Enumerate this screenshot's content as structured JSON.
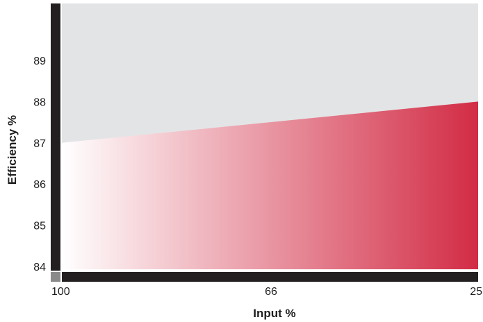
{
  "chart_data": {
    "type": "area",
    "xlabel": "Input %",
    "ylabel": "Efficiency %",
    "x_ticks": [
      "100",
      "66",
      "25"
    ],
    "y_ticks": [
      "84",
      "85",
      "86",
      "87",
      "88",
      "89"
    ],
    "xlim": [
      100,
      25
    ],
    "ylim": [
      84,
      90
    ],
    "series": [
      {
        "x": [
          100,
          25
        ],
        "y": [
          87.0,
          88.0
        ]
      }
    ],
    "grid": false,
    "legend": "none",
    "colors": {
      "background_region": "#e3e4e6",
      "fill_start": "#ffffff",
      "fill_end": "#d22c45",
      "axis": "#231f20",
      "corner": "#8a8a8a"
    }
  }
}
